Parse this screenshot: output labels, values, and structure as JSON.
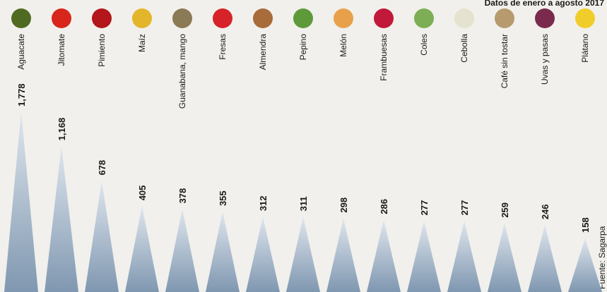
{
  "chart_data": {
    "type": "spike",
    "subtitle": "Datos de enero a agosto 2017",
    "source": "Fuente: Sagarpa",
    "categories": [
      "Aguacate",
      "Jitomate",
      "Pimiento",
      "Maíz",
      "Guanabana, mango",
      "Fresas",
      "Almendra",
      "Pepino",
      "Melón",
      "Frambuesas",
      "Coles",
      "Cebolla",
      "Café sin tostar",
      "Uvas y pasas",
      "Plátano"
    ],
    "values": [
      1778,
      1168,
      678,
      405,
      378,
      355,
      312,
      311,
      298,
      286,
      277,
      277,
      259,
      246,
      158
    ],
    "value_labels": [
      "1,778",
      "1,168",
      "678",
      "405",
      "378",
      "355",
      "312",
      "311",
      "298",
      "286",
      "277",
      "277",
      "259",
      "246",
      "158"
    ],
    "color": "#8fa6bd"
  }
}
